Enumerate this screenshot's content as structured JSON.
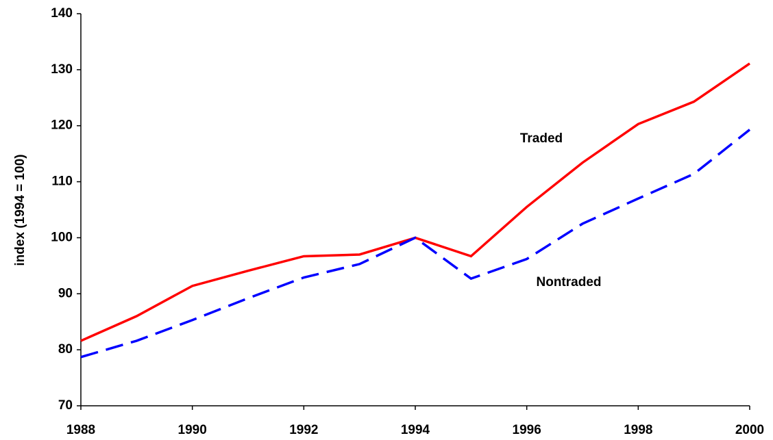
{
  "chart_data": {
    "type": "line",
    "y_label": "index (1994 = 100)",
    "x": [
      1988,
      1989,
      1990,
      1991,
      1992,
      1993,
      1994,
      1995,
      1996,
      1997,
      1998,
      1999,
      2000
    ],
    "series": [
      {
        "name": "Traded",
        "color": "#ff0000",
        "style": "solid",
        "values": [
          81.6,
          86,
          91.4,
          94.1,
          96.7,
          97,
          100,
          96.7,
          105.5,
          113.4,
          120.3,
          124.3,
          131.1
        ]
      },
      {
        "name": "Nontraded",
        "color": "#0000ff",
        "style": "dashed",
        "values": [
          78.7,
          81.6,
          85.3,
          89.2,
          92.9,
          95.3,
          100,
          92.7,
          96.2,
          102.5,
          107,
          111.4,
          119.3
        ]
      }
    ],
    "xlim": [
      1988,
      2000
    ],
    "xticks": [
      1988,
      1990,
      1992,
      1994,
      1996,
      1998,
      2000
    ],
    "ylim": [
      70,
      140
    ],
    "yticks": [
      70,
      80,
      90,
      100,
      110,
      120,
      130,
      140
    ],
    "grid": false
  }
}
